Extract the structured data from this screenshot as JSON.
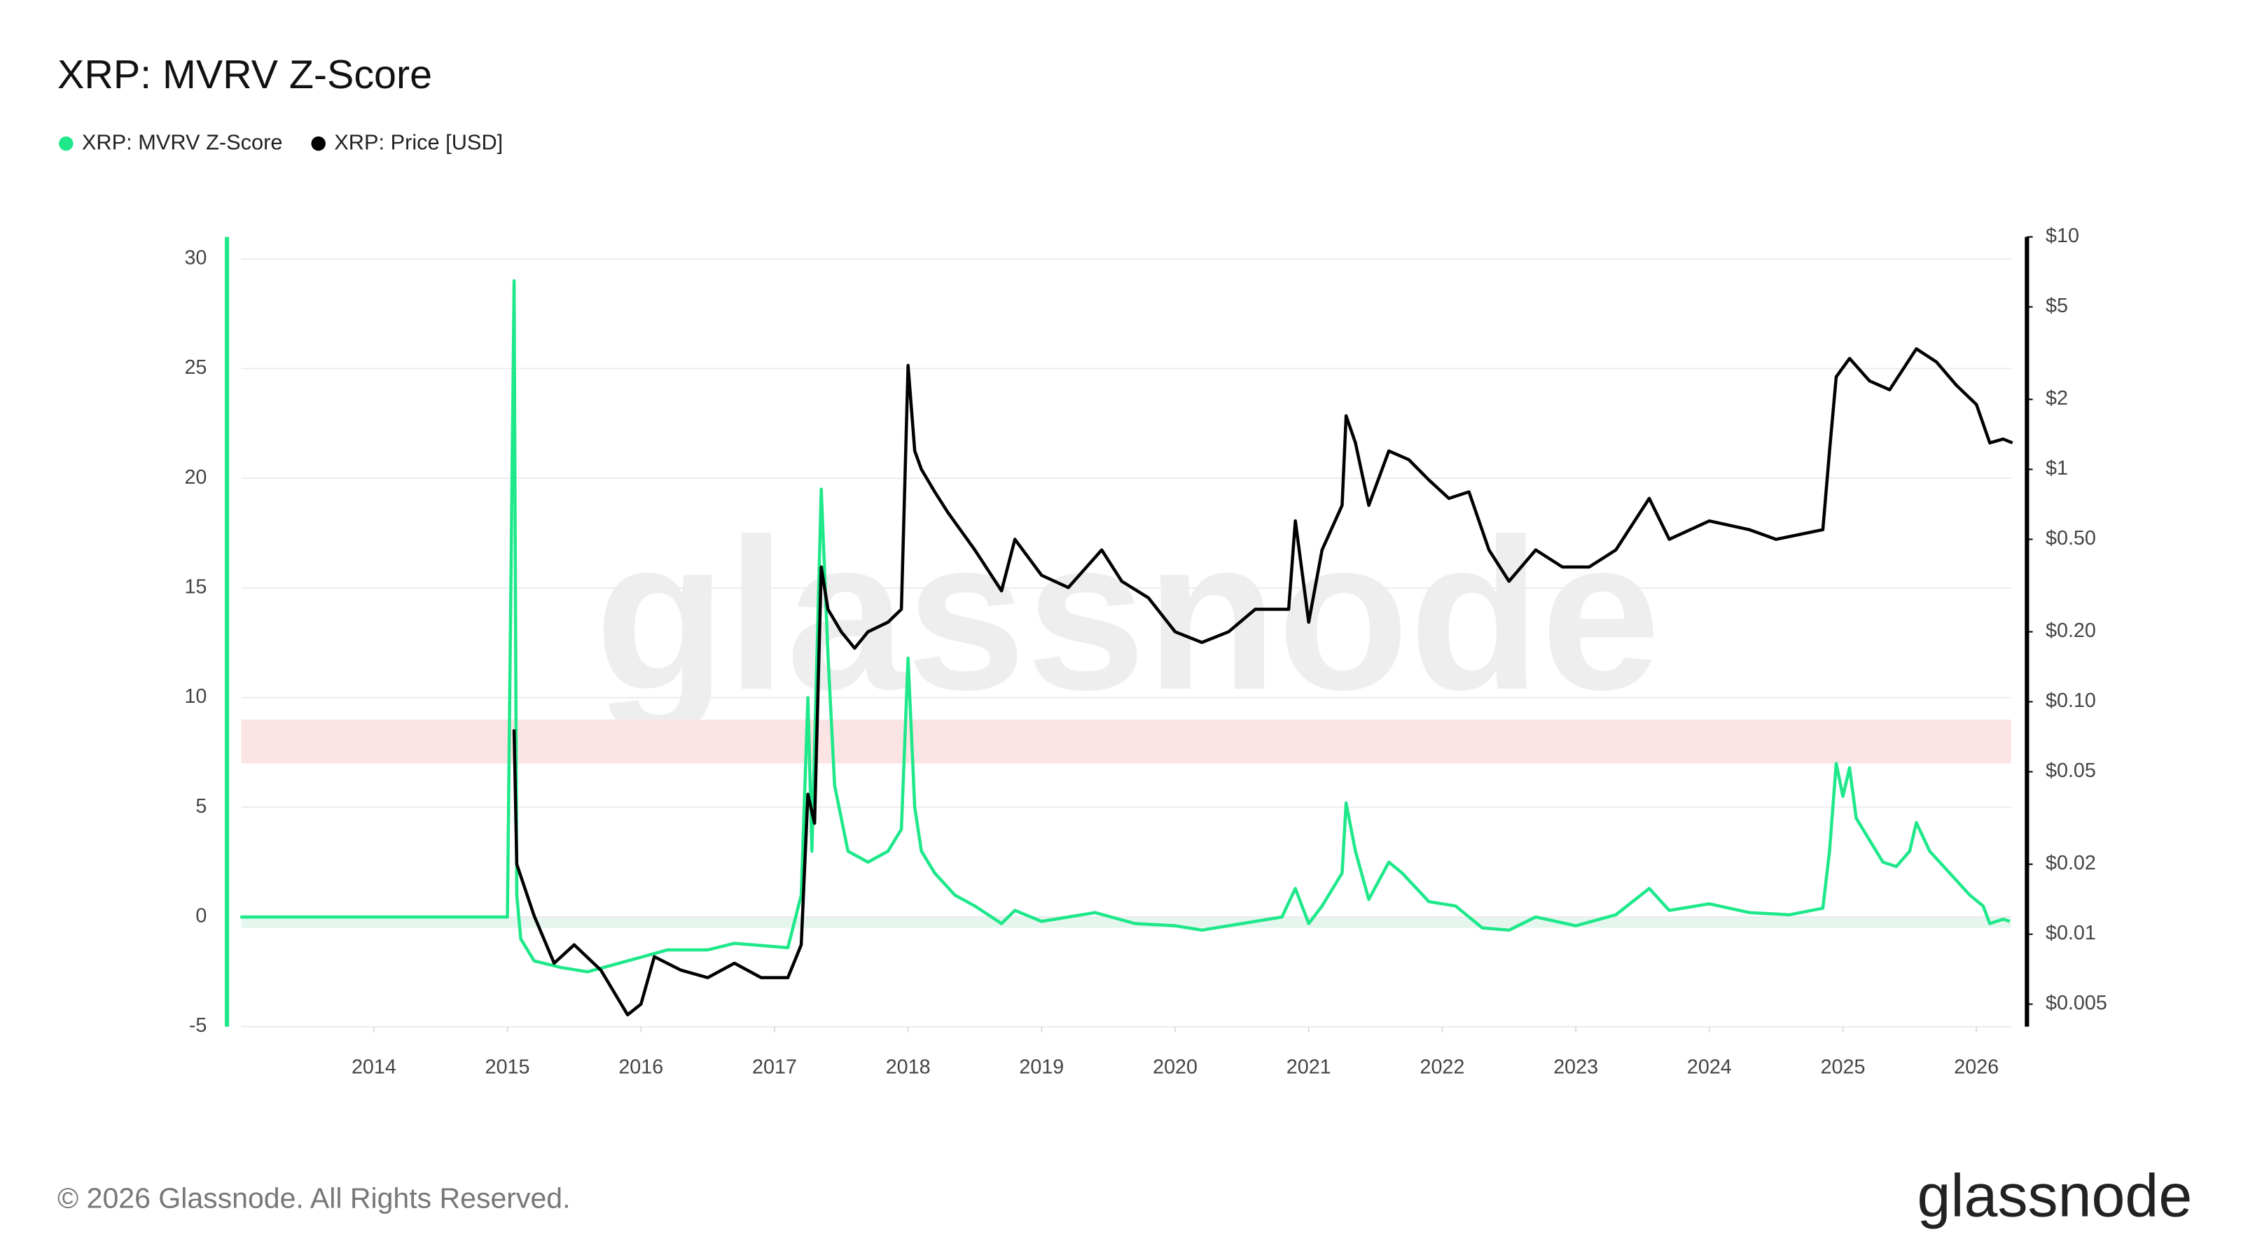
{
  "chart_data": {
    "type": "line",
    "title": "XRP: MVRV Z-Score",
    "watermark": "glassnode",
    "footer": "© 2026 Glassnode. All Rights Reserved.",
    "brand": "glassnode",
    "xlim": [
      2012.9,
      2026.26
    ],
    "xticks": [
      2014,
      2015,
      2016,
      2017,
      2018,
      2019,
      2020,
      2021,
      2022,
      2023,
      2024,
      2025,
      2026
    ],
    "ylim": [
      -5,
      31
    ],
    "yticks": [
      -5,
      0,
      5,
      10,
      15,
      20,
      25,
      30
    ],
    "y2lim": [
      0.004,
      10
    ],
    "y2log": true,
    "y2ticks": [
      {
        "value": 10,
        "label": "$10"
      },
      {
        "value": 5,
        "label": "$5"
      },
      {
        "value": 2,
        "label": "$2"
      },
      {
        "value": 1,
        "label": "$1"
      },
      {
        "value": 0.5,
        "label": "$0.50"
      },
      {
        "value": 0.2,
        "label": "$0.20"
      },
      {
        "value": 0.1,
        "label": "$0.10"
      },
      {
        "value": 0.05,
        "label": "$0.05"
      },
      {
        "value": 0.02,
        "label": "$0.02"
      },
      {
        "value": 0.01,
        "label": "$0.01"
      },
      {
        "value": 0.005,
        "label": "$0.005"
      }
    ],
    "grid": true,
    "bands": [
      {
        "from": 7,
        "to": 9,
        "color": "#fde4e4"
      },
      {
        "from": -0.5,
        "to": 0,
        "color": "#e4f6ee"
      }
    ],
    "series": [
      {
        "name": "XRP: MVRV Z-Score",
        "color": "#1ee88a",
        "axis": "y",
        "x": [
          2013.0,
          2015.0,
          2015.05,
          2015.07,
          2015.1,
          2015.2,
          2015.4,
          2015.6,
          2015.9,
          2016.2,
          2016.5,
          2016.7,
          2016.9,
          2017.1,
          2017.2,
          2017.25,
          2017.28,
          2017.35,
          2017.4,
          2017.45,
          2017.55,
          2017.7,
          2017.85,
          2017.95,
          2018.0,
          2018.05,
          2018.1,
          2018.2,
          2018.35,
          2018.5,
          2018.7,
          2018.8,
          2019.0,
          2019.4,
          2019.7,
          2020.0,
          2020.2,
          2020.5,
          2020.8,
          2020.9,
          2021.0,
          2021.1,
          2021.25,
          2021.28,
          2021.35,
          2021.45,
          2021.6,
          2021.7,
          2021.9,
          2022.1,
          2022.3,
          2022.5,
          2022.7,
          2023.0,
          2023.3,
          2023.55,
          2023.7,
          2024.0,
          2024.3,
          2024.6,
          2024.85,
          2024.9,
          2024.95,
          2025.0,
          2025.05,
          2025.1,
          2025.2,
          2025.3,
          2025.4,
          2025.5,
          2025.55,
          2025.65,
          2025.8,
          2025.95,
          2026.05,
          2026.1,
          2026.2,
          2026.25
        ],
        "values": [
          0,
          0,
          29,
          1,
          -1,
          -2,
          -2.3,
          -2.5,
          -2,
          -1.5,
          -1.5,
          -1.2,
          -1.3,
          -1.4,
          1,
          10,
          3,
          19.5,
          12,
          6,
          3,
          2.5,
          3,
          4,
          11.8,
          5,
          3,
          2,
          1,
          0.5,
          -0.3,
          0.3,
          -0.2,
          0.2,
          -0.3,
          -0.4,
          -0.6,
          -0.3,
          0,
          1.3,
          -0.3,
          0.5,
          2,
          5.2,
          3,
          0.8,
          2.5,
          2,
          0.7,
          0.5,
          -0.5,
          -0.6,
          0,
          -0.4,
          0.1,
          1.3,
          0.3,
          0.6,
          0.2,
          0.1,
          0.4,
          3,
          7,
          5.5,
          6.8,
          4.5,
          3.5,
          2.5,
          2.3,
          3,
          4.3,
          3,
          2,
          1,
          0.5,
          -0.3,
          -0.1,
          -0.2
        ]
      },
      {
        "name": "XRP: Price [USD]",
        "color": "#000000",
        "axis": "y2",
        "x": [
          2015.05,
          2015.07,
          2015.2,
          2015.35,
          2015.5,
          2015.7,
          2015.9,
          2016.0,
          2016.1,
          2016.3,
          2016.5,
          2016.7,
          2016.9,
          2017.1,
          2017.2,
          2017.25,
          2017.3,
          2017.35,
          2017.4,
          2017.5,
          2017.6,
          2017.7,
          2017.85,
          2017.95,
          2018.0,
          2018.05,
          2018.1,
          2018.2,
          2018.3,
          2018.5,
          2018.7,
          2018.8,
          2019.0,
          2019.2,
          2019.45,
          2019.6,
          2019.8,
          2020.0,
          2020.2,
          2020.4,
          2020.6,
          2020.85,
          2020.9,
          2021.0,
          2021.1,
          2021.25,
          2021.28,
          2021.35,
          2021.45,
          2021.6,
          2021.75,
          2021.9,
          2022.05,
          2022.2,
          2022.35,
          2022.5,
          2022.7,
          2022.9,
          2023.1,
          2023.3,
          2023.55,
          2023.7,
          2024.0,
          2024.3,
          2024.5,
          2024.85,
          2024.9,
          2024.95,
          2025.05,
          2025.2,
          2025.35,
          2025.55,
          2025.7,
          2025.85,
          2026.0,
          2026.1,
          2026.2,
          2026.27
        ],
        "values": [
          0.076,
          0.02,
          0.012,
          0.0075,
          0.009,
          0.007,
          0.0045,
          0.005,
          0.008,
          0.007,
          0.0065,
          0.0075,
          0.0065,
          0.0065,
          0.009,
          0.04,
          0.03,
          0.38,
          0.25,
          0.2,
          0.17,
          0.2,
          0.22,
          0.25,
          2.8,
          1.2,
          1.0,
          0.8,
          0.65,
          0.45,
          0.3,
          0.5,
          0.35,
          0.31,
          0.45,
          0.33,
          0.28,
          0.2,
          0.18,
          0.2,
          0.25,
          0.25,
          0.6,
          0.22,
          0.45,
          0.7,
          1.7,
          1.3,
          0.7,
          1.2,
          1.1,
          0.9,
          0.75,
          0.8,
          0.45,
          0.33,
          0.45,
          0.38,
          0.38,
          0.45,
          0.75,
          0.5,
          0.6,
          0.55,
          0.5,
          0.55,
          1.2,
          2.5,
          3.0,
          2.4,
          2.2,
          3.3,
          2.9,
          2.3,
          1.9,
          1.3,
          1.35,
          1.3
        ]
      }
    ]
  }
}
